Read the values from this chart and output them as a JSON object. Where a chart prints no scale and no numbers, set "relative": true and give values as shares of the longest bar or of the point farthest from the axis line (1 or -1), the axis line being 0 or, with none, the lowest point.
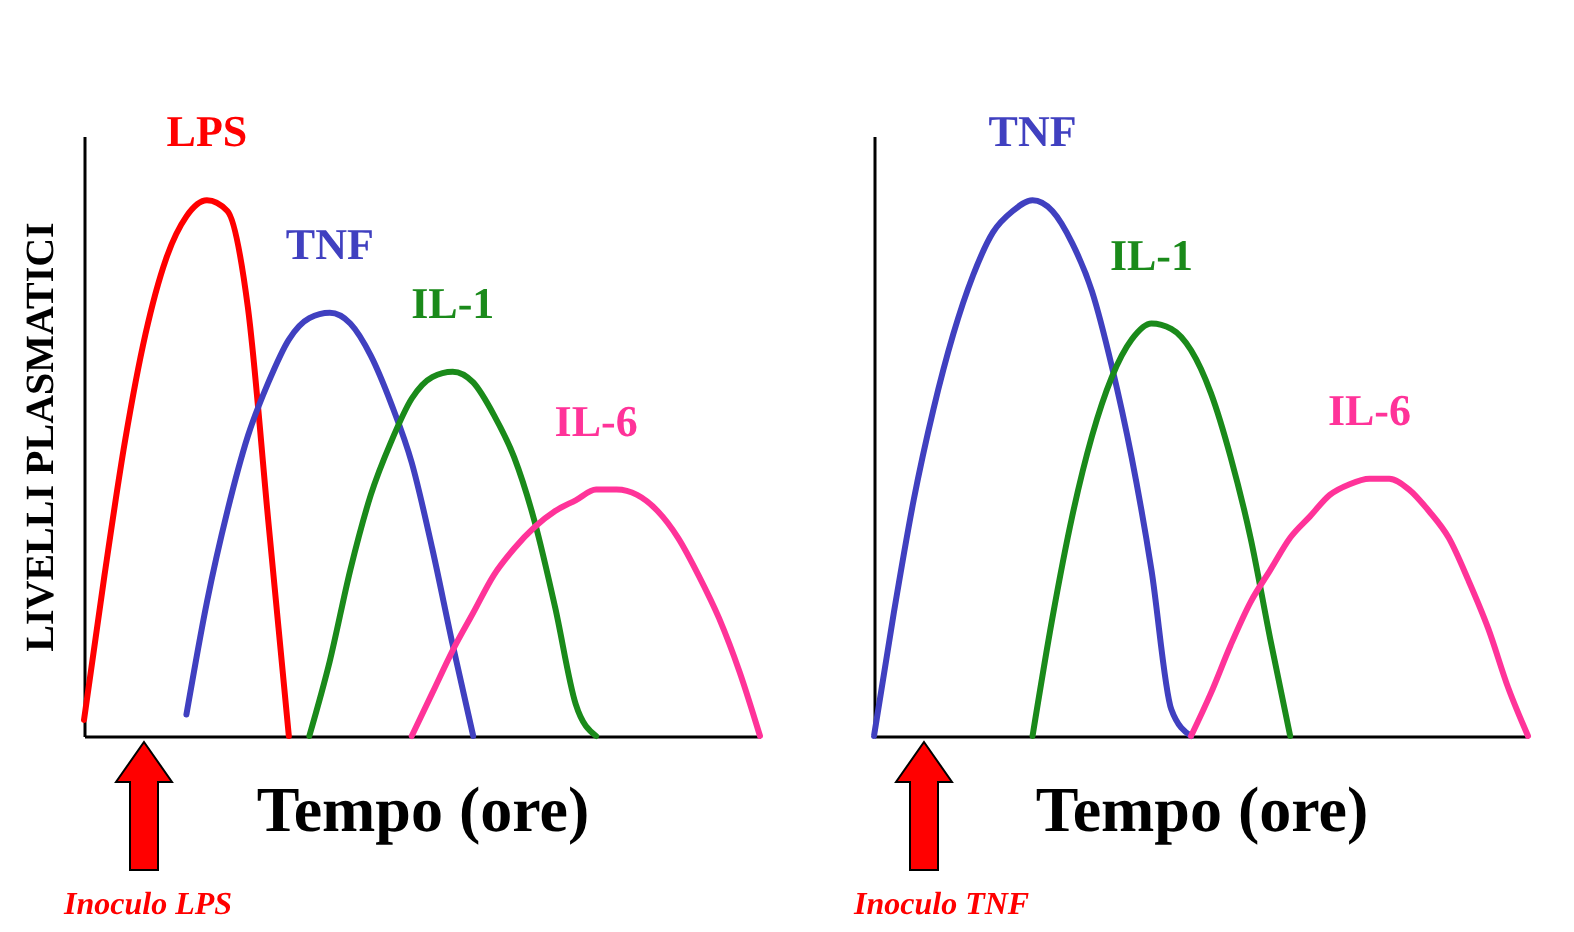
{
  "chart_data": [
    {
      "type": "line",
      "relative": true,
      "tick_labels": false,
      "legend": false,
      "xlabel": "Tempo (ore)",
      "ylabel": "LIVELLI PLASMATICI",
      "annotations": [
        "Inoculo LPS"
      ],
      "categories": [
        null,
        null,
        null,
        null,
        null,
        null,
        null,
        null,
        null,
        null,
        null,
        null,
        null,
        null,
        null,
        null,
        null,
        null,
        null,
        null,
        null,
        null,
        null,
        null,
        null,
        null,
        null,
        null,
        null,
        null,
        null,
        null,
        null,
        null
      ],
      "series": [
        {
          "name": "LPS",
          "color": "#ff0000",
          "values": [
            0.03,
            0.3,
            0.55,
            0.75,
            0.89,
            0.97,
            1.0,
            0.98,
            0.8,
            0.4,
            0,
            null,
            null,
            null,
            null,
            null,
            null,
            null,
            null,
            null,
            null,
            null,
            null,
            null,
            null,
            null,
            null,
            null,
            null,
            null,
            null,
            null,
            null,
            null
          ]
        },
        {
          "name": "TNF",
          "color": "#4040c0",
          "values": [
            null,
            null,
            null,
            null,
            null,
            0.04,
            0.25,
            0.42,
            0.56,
            0.66,
            0.74,
            0.78,
            0.79,
            0.77,
            0.71,
            0.62,
            0.51,
            0.35,
            0.17,
            0,
            null,
            null,
            null,
            null,
            null,
            null,
            null,
            null,
            null,
            null,
            null,
            null,
            null,
            null
          ]
        },
        {
          "name": "IL-1",
          "color": "#1a8a1a",
          "values": [
            null,
            null,
            null,
            null,
            null,
            null,
            null,
            null,
            null,
            null,
            null,
            0,
            0.14,
            0.31,
            0.45,
            0.55,
            0.63,
            0.67,
            0.68,
            0.66,
            0.6,
            0.52,
            0.4,
            0.24,
            0.06,
            0,
            null,
            null,
            null,
            null,
            null,
            null,
            null,
            null
          ]
        },
        {
          "name": "IL-6",
          "color": "#ff3399",
          "values": [
            null,
            null,
            null,
            null,
            null,
            null,
            null,
            null,
            null,
            null,
            null,
            null,
            null,
            null,
            null,
            null,
            0,
            0.08,
            0.16,
            0.23,
            0.3,
            0.35,
            0.39,
            0.42,
            0.44,
            0.46,
            0.46,
            0.45,
            0.42,
            0.37,
            0.3,
            0.22,
            0.12,
            0
          ]
        }
      ]
    },
    {
      "type": "line",
      "relative": true,
      "tick_labels": false,
      "legend": false,
      "xlabel": "Tempo (ore)",
      "annotations": [
        "Inoculo TNF"
      ],
      "categories": [
        null,
        null,
        null,
        null,
        null,
        null,
        null,
        null,
        null,
        null,
        null,
        null,
        null,
        null,
        null,
        null,
        null,
        null,
        null,
        null,
        null,
        null,
        null,
        null,
        null,
        null,
        null,
        null,
        null,
        null,
        null,
        null,
        null,
        null
      ],
      "series": [
        {
          "name": "TNF",
          "color": "#4040c0",
          "values": [
            0,
            0.23,
            0.44,
            0.61,
            0.75,
            0.86,
            0.94,
            0.98,
            1.0,
            0.98,
            0.92,
            0.83,
            0.69,
            0.52,
            0.31,
            0.05,
            0,
            null,
            null,
            null,
            null,
            null,
            null,
            null,
            null,
            null,
            null,
            null,
            null,
            null,
            null,
            null,
            null,
            null
          ]
        },
        {
          "name": "IL-1",
          "color": "#1a8a1a",
          "values": [
            null,
            null,
            null,
            null,
            null,
            null,
            null,
            null,
            0,
            0.22,
            0.41,
            0.56,
            0.67,
            0.74,
            0.77,
            0.76,
            0.72,
            0.64,
            0.52,
            0.37,
            0.18,
            0,
            null,
            null,
            null,
            null,
            null,
            null,
            null,
            null,
            null,
            null,
            null,
            null
          ]
        },
        {
          "name": "IL-6",
          "color": "#ff3399",
          "values": [
            null,
            null,
            null,
            null,
            null,
            null,
            null,
            null,
            null,
            null,
            null,
            null,
            null,
            null,
            null,
            null,
            0,
            0.08,
            0.17,
            0.25,
            0.31,
            0.37,
            0.41,
            0.45,
            0.47,
            0.48,
            0.48,
            0.46,
            0.42,
            0.37,
            0.29,
            0.2,
            0.09,
            0
          ]
        }
      ]
    }
  ]
}
